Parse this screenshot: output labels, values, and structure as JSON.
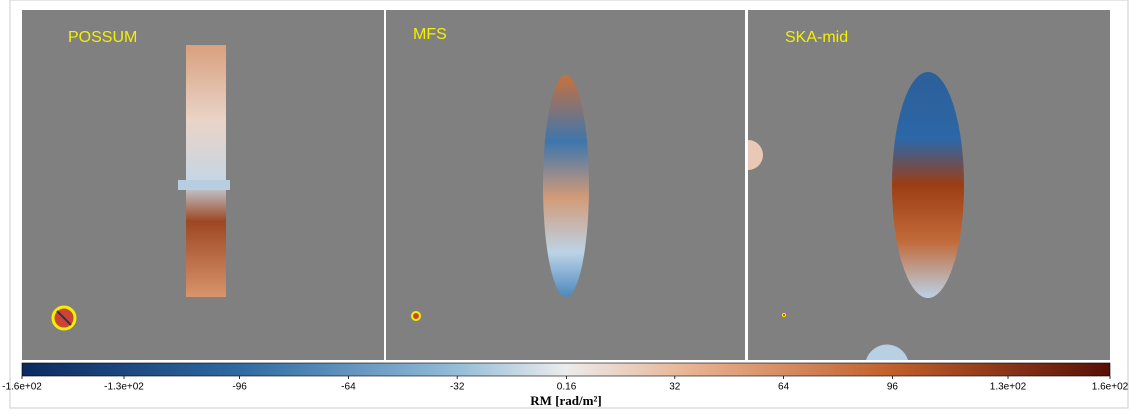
{
  "panels": [
    {
      "label": "POSSUM"
    },
    {
      "label": "MFS"
    },
    {
      "label": "SKA-mid"
    }
  ],
  "colorbar": {
    "label": "RM [rad/m²]",
    "lim": [
      -160,
      160
    ],
    "ticks": [
      {
        "value": -160,
        "label": "-1.6e+02"
      },
      {
        "value": -130,
        "label": "-1.3e+02"
      },
      -96,
      -64,
      -32,
      0.16,
      32,
      64,
      96,
      {
        "value": 130,
        "label": "1.3e+02"
      },
      {
        "value": 160,
        "label": "1.6e+02"
      }
    ]
  }
}
